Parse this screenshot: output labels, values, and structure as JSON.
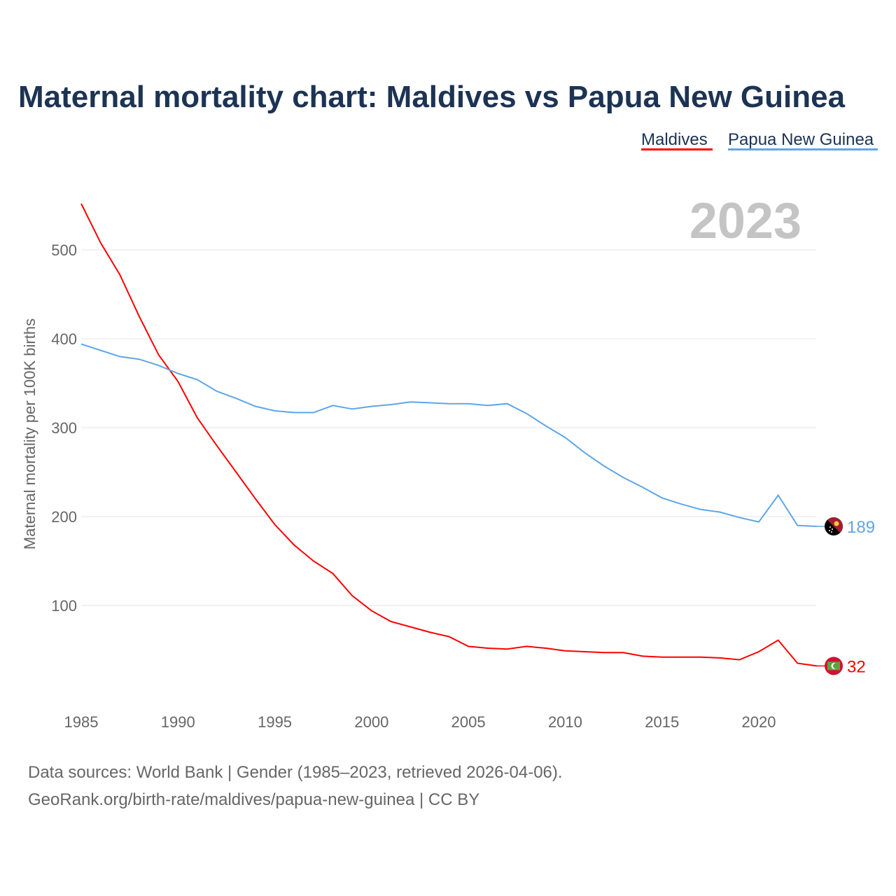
{
  "chart_data": {
    "type": "line",
    "title": "Maternal mortality chart: Maldives vs Papua New Guinea",
    "ylabel": "Maternal mortality per 100K births",
    "xlabel": "",
    "year_label": "2023",
    "xlim": [
      1985,
      2023
    ],
    "ylim": [
      0,
      560
    ],
    "x_ticks": [
      1985,
      1990,
      1995,
      2000,
      2005,
      2010,
      2015,
      2020
    ],
    "y_ticks": [
      100,
      200,
      300,
      400,
      500
    ],
    "grid": true,
    "legend_position": "top-right",
    "x": [
      1985,
      1986,
      1987,
      1988,
      1989,
      1990,
      1991,
      1992,
      1993,
      1994,
      1995,
      1996,
      1997,
      1998,
      1999,
      2000,
      2001,
      2002,
      2003,
      2004,
      2005,
      2006,
      2007,
      2008,
      2009,
      2010,
      2011,
      2012,
      2013,
      2014,
      2015,
      2016,
      2017,
      2018,
      2019,
      2020,
      2021,
      2022,
      2023
    ],
    "series": [
      {
        "name": "Maldives",
        "color": "#ff0000",
        "end_label": "32",
        "values": [
          552,
          508,
          472,
          425,
          382,
          352,
          311,
          280,
          250,
          220,
          191,
          168,
          150,
          136,
          111,
          94,
          82,
          76,
          70,
          65,
          54,
          52,
          51,
          54,
          52,
          49,
          48,
          47,
          47,
          43,
          42,
          42,
          42,
          41,
          39,
          48,
          61,
          35,
          32
        ]
      },
      {
        "name": "Papua New Guinea",
        "color": "#5ea6e8",
        "end_label": "189",
        "values": [
          394,
          387,
          380,
          377,
          370,
          361,
          354,
          341,
          333,
          324,
          319,
          317,
          317,
          325,
          321,
          324,
          326,
          329,
          328,
          327,
          327,
          325,
          327,
          316,
          302,
          289,
          272,
          257,
          244,
          233,
          221,
          214,
          208,
          205,
          199,
          194,
          224,
          190,
          189
        ]
      }
    ],
    "source_line1": "Data sources: World Bank | Gender (1985–2023, retrieved 2026-04-06).",
    "source_line2": "GeoRank.org/birth-rate/maldives/papua-new-guinea | CC BY"
  }
}
